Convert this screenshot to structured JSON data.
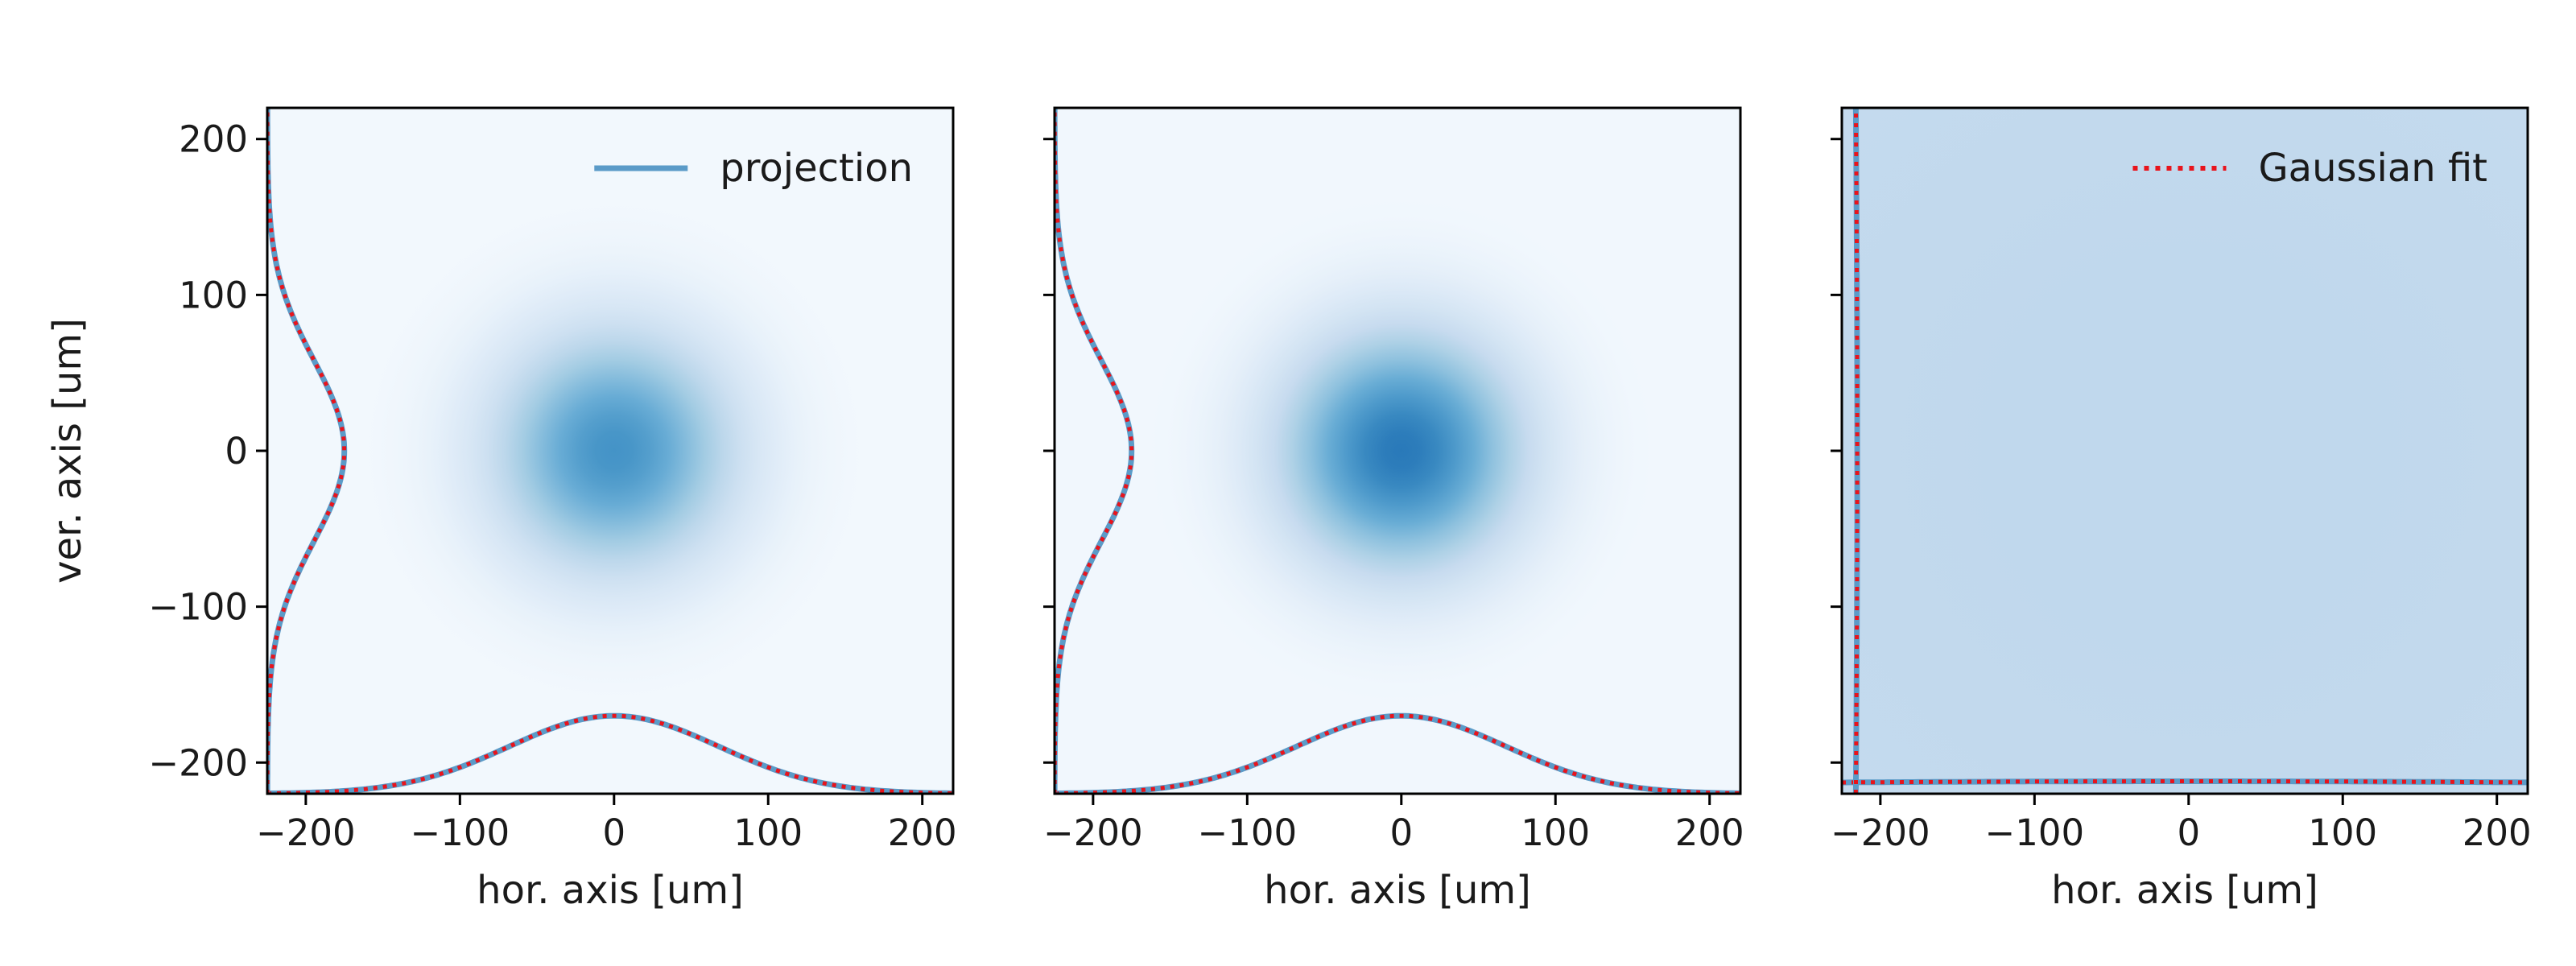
{
  "chart_data": [
    {
      "type": "heatmap",
      "panel": "left",
      "xlabel": "hor. axis [um]",
      "ylabel": "ver. axis [um]",
      "xlim": [
        -225,
        220
      ],
      "ylim": [
        -220,
        220
      ],
      "xticks": [
        -200,
        -100,
        0,
        100,
        200
      ],
      "yticks": [
        -200,
        -100,
        0,
        100,
        200
      ],
      "xtick_labels": [
        "−200",
        "−100",
        "0",
        "100",
        "200"
      ],
      "ytick_labels": [
        "−200",
        "−100",
        "0",
        "100",
        "200"
      ],
      "show_y_tick_labels": true,
      "colormap": "Blues",
      "image": {
        "center_x": 0,
        "center_y": 0,
        "sigma": 55,
        "peak_intensity": 0.62,
        "background_intensity": 0.02
      },
      "legend": {
        "placement": "top-right",
        "entries": [
          {
            "label": "projection",
            "style": "solid",
            "color": "#5b9bc8"
          }
        ]
      },
      "series": [
        {
          "name": "projection",
          "orientation": "horizontal",
          "style": "solid",
          "color": "#5b9bc8",
          "mean": 0,
          "sigma": 68,
          "baseline": -220,
          "peak": -170
        },
        {
          "name": "Gaussian fit",
          "orientation": "horizontal",
          "style": "dotted",
          "color": "#e8141c",
          "mean": 0,
          "sigma": 68,
          "baseline": -220,
          "peak": -170
        },
        {
          "name": "projection",
          "orientation": "vertical",
          "style": "solid",
          "color": "#5b9bc8",
          "mean": 0,
          "sigma": 58,
          "baseline": -225,
          "peak": -175
        },
        {
          "name": "Gaussian fit",
          "orientation": "vertical",
          "style": "dotted",
          "color": "#e8141c",
          "mean": 0,
          "sigma": 58,
          "baseline": -225,
          "peak": -175
        }
      ]
    },
    {
      "type": "heatmap",
      "panel": "middle",
      "xlabel": "hor. axis [um]",
      "ylabel": "",
      "xlim": [
        -225,
        220
      ],
      "ylim": [
        -220,
        220
      ],
      "xticks": [
        -200,
        -100,
        0,
        100,
        200
      ],
      "yticks": [
        -200,
        -100,
        0,
        100,
        200
      ],
      "xtick_labels": [
        "−200",
        "−100",
        "0",
        "100",
        "200"
      ],
      "ytick_labels": [],
      "show_y_tick_labels": false,
      "colormap": "Blues",
      "image": {
        "center_x": 0,
        "center_y": 0,
        "sigma": 55,
        "peak_intensity": 0.72,
        "background_intensity": 0.02
      },
      "series": [
        {
          "name": "projection",
          "orientation": "horizontal",
          "style": "solid",
          "color": "#5b9bc8",
          "mean": 0,
          "sigma": 68,
          "baseline": -220,
          "peak": -170
        },
        {
          "name": "Gaussian fit",
          "orientation": "horizontal",
          "style": "dotted",
          "color": "#e8141c",
          "mean": 0,
          "sigma": 68,
          "baseline": -220,
          "peak": -170
        },
        {
          "name": "projection",
          "orientation": "vertical",
          "style": "solid",
          "color": "#5b9bc8",
          "mean": 0,
          "sigma": 58,
          "baseline": -225,
          "peak": -175
        },
        {
          "name": "Gaussian fit",
          "orientation": "vertical",
          "style": "dotted",
          "color": "#e8141c",
          "mean": 0,
          "sigma": 58,
          "baseline": -225,
          "peak": -175
        }
      ]
    },
    {
      "type": "heatmap",
      "panel": "right",
      "xlabel": "hor. axis [um]",
      "ylabel": "",
      "xlim": [
        -225,
        220
      ],
      "ylim": [
        -220,
        220
      ],
      "xticks": [
        -200,
        -100,
        0,
        100,
        200
      ],
      "yticks": [
        -200,
        -100,
        0,
        100,
        200
      ],
      "xtick_labels": [
        "−200",
        "−100",
        "0",
        "100",
        "200"
      ],
      "ytick_labels": [],
      "show_y_tick_labels": false,
      "colormap": "Blues",
      "image": {
        "center_x": 0,
        "center_y": 0,
        "sigma": 500,
        "peak_intensity": 0.27,
        "background_intensity": 0.2
      },
      "legend": {
        "placement": "top-right",
        "entries": [
          {
            "label": "Gaussian fit",
            "style": "dotted",
            "color": "#e8141c"
          }
        ]
      },
      "series": [
        {
          "name": "projection",
          "orientation": "horizontal",
          "style": "solid",
          "color": "#5b9bc8",
          "mean": 0,
          "sigma": 500,
          "baseline": -220,
          "peak": -212
        },
        {
          "name": "Gaussian fit",
          "orientation": "horizontal",
          "style": "dotted",
          "color": "#e8141c",
          "mean": 0,
          "sigma": 500,
          "baseline": -220,
          "peak": -212
        },
        {
          "name": "projection",
          "orientation": "vertical",
          "style": "solid",
          "color": "#5b9bc8",
          "mean": 0,
          "sigma": 500,
          "baseline": -225,
          "peak": -215
        },
        {
          "name": "Gaussian fit",
          "orientation": "vertical",
          "style": "dotted",
          "color": "#e8141c",
          "mean": 0,
          "sigma": 500,
          "baseline": -225,
          "peak": -215
        }
      ]
    }
  ]
}
